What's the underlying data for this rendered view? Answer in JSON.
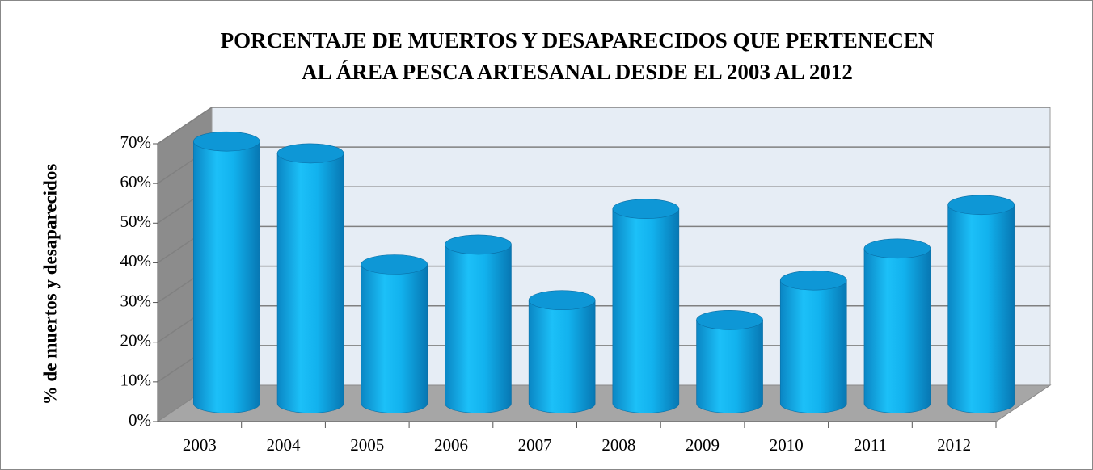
{
  "chart_data": {
    "type": "bar3d",
    "title": [
      "PORCENTAJE DE MUERTOS Y DESAPARECIDOS QUE PERTENECEN",
      "AL ÁREA PESCA ARTESANAL DESDE EL 2003 AL 2012"
    ],
    "ylabel": "% de muertos y desaparecidos",
    "categories": [
      "2003",
      "2004",
      "2005",
      "2006",
      "2007",
      "2008",
      "2009",
      "2010",
      "2011",
      "2012"
    ],
    "values": [
      66,
      63,
      35,
      40,
      26,
      49,
      21,
      31,
      39,
      50
    ],
    "color": "#10aee8",
    "ylim": [
      0,
      70
    ],
    "yticks": [
      {
        "value": 0,
        "label": "0%"
      },
      {
        "value": 10,
        "label": "10%"
      },
      {
        "value": 20,
        "label": "20%"
      },
      {
        "value": 30,
        "label": "30%"
      },
      {
        "value": 40,
        "label": "40%"
      },
      {
        "value": 50,
        "label": "50%"
      },
      {
        "value": 60,
        "label": "60%"
      },
      {
        "value": 70,
        "label": "70%"
      }
    ],
    "grid": true
  }
}
